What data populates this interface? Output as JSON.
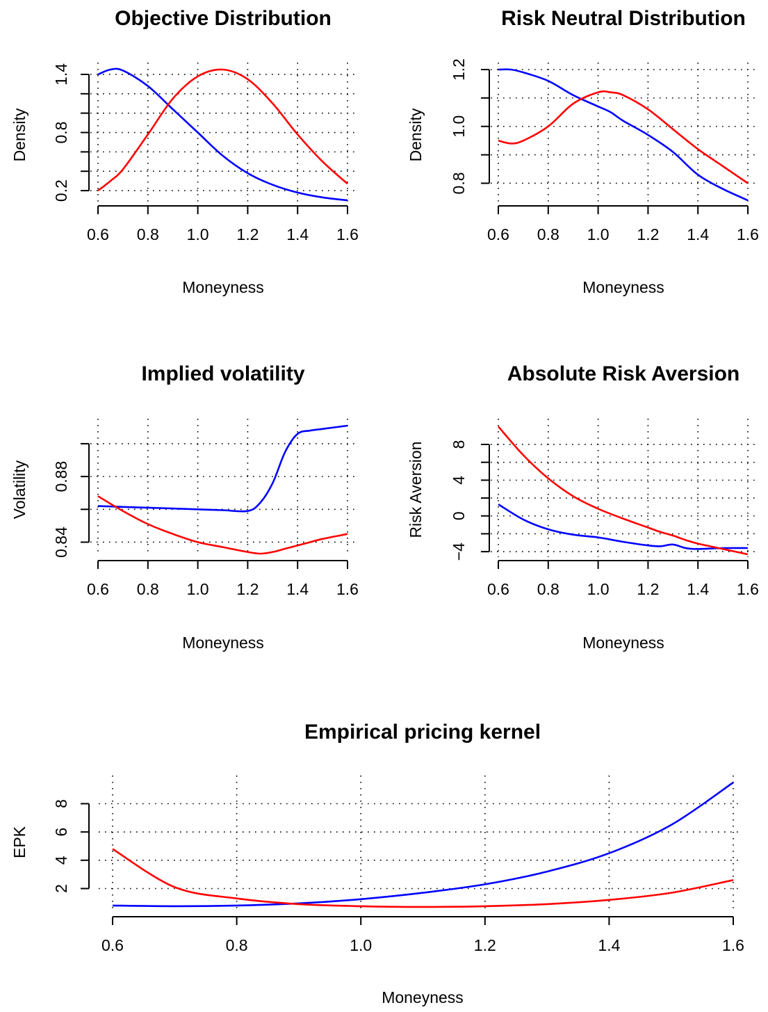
{
  "figure": {
    "colors": {
      "series_blue": "#0000ff",
      "series_red": "#ff0000",
      "axis": "#000000"
    }
  },
  "chart_data": [
    {
      "type": "line",
      "title": "Objective Distribution",
      "xlabel": "Moneyness",
      "ylabel": "Density",
      "xlim": [
        0.6,
        1.6
      ],
      "ylim": [
        0.1,
        1.45
      ],
      "xticks": [
        "0.6",
        "0.8",
        "1.0",
        "1.2",
        "1.4",
        "1.6"
      ],
      "yticks": [
        "0.2",
        "0.8",
        "1.4"
      ],
      "ytick_values": [
        0.2,
        0.8,
        1.4
      ],
      "yminor_ticks": [
        0.4,
        0.6,
        1.0,
        1.2
      ],
      "grid": "dotted",
      "x": [
        0.6,
        0.65,
        0.7,
        0.8,
        0.9,
        1.0,
        1.1,
        1.2,
        1.3,
        1.4,
        1.5,
        1.6
      ],
      "series": [
        {
          "color": "#0000ff",
          "values": [
            1.4,
            1.45,
            1.44,
            1.28,
            1.04,
            0.8,
            0.56,
            0.38,
            0.26,
            0.18,
            0.13,
            0.1
          ]
        },
        {
          "color": "#ff0000",
          "values": [
            0.2,
            0.3,
            0.42,
            0.78,
            1.15,
            1.38,
            1.45,
            1.35,
            1.1,
            0.78,
            0.5,
            0.27
          ]
        }
      ]
    },
    {
      "type": "line",
      "title": "Risk Neutral Distribution",
      "xlabel": "Moneyness",
      "ylabel": "Density",
      "xlim": [
        0.6,
        1.6
      ],
      "ylim": [
        0.74,
        1.2
      ],
      "xticks": [
        "0.6",
        "0.8",
        "1.0",
        "1.2",
        "1.4",
        "1.6"
      ],
      "yticks": [
        "0.8",
        "1.0",
        "1.2"
      ],
      "ytick_values": [
        0.8,
        1.0,
        1.2
      ],
      "yminor_ticks": [
        0.9,
        1.1
      ],
      "grid": "dotted",
      "x": [
        0.6,
        0.65,
        0.7,
        0.8,
        0.9,
        1.0,
        1.05,
        1.1,
        1.2,
        1.3,
        1.4,
        1.5,
        1.6
      ],
      "series": [
        {
          "color": "#0000ff",
          "values": [
            1.2,
            1.2,
            1.19,
            1.16,
            1.11,
            1.07,
            1.05,
            1.02,
            0.97,
            0.91,
            0.83,
            0.78,
            0.74
          ]
        },
        {
          "color": "#ff0000",
          "values": [
            0.95,
            0.94,
            0.95,
            1.0,
            1.08,
            1.12,
            1.12,
            1.11,
            1.06,
            0.99,
            0.92,
            0.86,
            0.8
          ]
        }
      ]
    },
    {
      "type": "line",
      "title": "Implied volatility",
      "xlabel": "Moneyness",
      "ylabel": "Volatility",
      "xlim": [
        0.6,
        1.6
      ],
      "ylim": [
        0.833,
        0.911
      ],
      "xticks": [
        "0.6",
        "0.8",
        "1.0",
        "1.2",
        "1.4",
        "1.6"
      ],
      "yticks": [
        "0.84",
        "0.88"
      ],
      "ytick_values": [
        0.84,
        0.88
      ],
      "yminor_ticks": [
        0.86,
        0.9
      ],
      "grid": "dotted",
      "x": [
        0.6,
        0.7,
        0.8,
        0.9,
        1.0,
        1.1,
        1.2,
        1.25,
        1.3,
        1.35,
        1.4,
        1.45,
        1.5,
        1.6
      ],
      "series": [
        {
          "color": "#0000ff",
          "values": [
            0.862,
            0.8615,
            0.861,
            0.8605,
            0.86,
            0.8595,
            0.859,
            0.864,
            0.876,
            0.895,
            0.906,
            0.908,
            0.909,
            0.911
          ]
        },
        {
          "color": "#ff0000",
          "values": [
            0.868,
            0.859,
            0.851,
            0.845,
            0.84,
            0.837,
            0.834,
            0.833,
            0.834,
            0.836,
            0.838,
            0.84,
            0.842,
            0.845
          ]
        }
      ]
    },
    {
      "type": "line",
      "title": "Absolute Risk Aversion",
      "xlabel": "Moneyness",
      "ylabel": "Risk Aversion",
      "xlim": [
        0.6,
        1.6
      ],
      "ylim": [
        -4.3,
        10.1
      ],
      "xticks": [
        "0.6",
        "0.8",
        "1.0",
        "1.2",
        "1.4",
        "1.6"
      ],
      "yticks": [
        "−4",
        "0",
        "4",
        "8"
      ],
      "ytick_values": [
        -4,
        0,
        4,
        8
      ],
      "yminor_ticks": [
        -2,
        2,
        6
      ],
      "grid": "dotted",
      "x": [
        0.6,
        0.7,
        0.8,
        0.9,
        1.0,
        1.1,
        1.2,
        1.25,
        1.3,
        1.35,
        1.4,
        1.5,
        1.6
      ],
      "series": [
        {
          "color": "#0000ff",
          "values": [
            1.3,
            -0.4,
            -1.5,
            -2.1,
            -2.4,
            -2.9,
            -3.3,
            -3.4,
            -3.2,
            -3.6,
            -3.7,
            -3.6,
            -3.6
          ]
        },
        {
          "color": "#ff0000",
          "values": [
            10.0,
            6.8,
            4.2,
            2.2,
            0.8,
            -0.3,
            -1.3,
            -1.8,
            -2.2,
            -2.7,
            -3.1,
            -3.7,
            -4.3
          ]
        }
      ]
    },
    {
      "type": "line",
      "title": "Empirical pricing kernel",
      "xlabel": "Moneyness",
      "ylabel": "EPK",
      "xlim": [
        0.6,
        1.6
      ],
      "ylim": [
        0.5,
        9.5
      ],
      "xticks": [
        "0.6",
        "0.8",
        "1.0",
        "1.2",
        "1.4",
        "1.6"
      ],
      "yticks": [
        "2",
        "4",
        "6",
        "8"
      ],
      "ytick_values": [
        2,
        4,
        6,
        8
      ],
      "yminor_ticks": [],
      "grid": "dotted",
      "x": [
        0.6,
        0.7,
        0.8,
        0.9,
        1.0,
        1.1,
        1.2,
        1.3,
        1.4,
        1.5,
        1.6
      ],
      "series": [
        {
          "color": "#0000ff",
          "values": [
            0.8,
            0.75,
            0.8,
            0.95,
            1.25,
            1.7,
            2.3,
            3.2,
            4.5,
            6.5,
            9.5
          ]
        },
        {
          "color": "#ff0000",
          "values": [
            4.8,
            2.1,
            1.3,
            0.9,
            0.75,
            0.7,
            0.75,
            0.9,
            1.2,
            1.7,
            2.6
          ]
        }
      ]
    }
  ]
}
